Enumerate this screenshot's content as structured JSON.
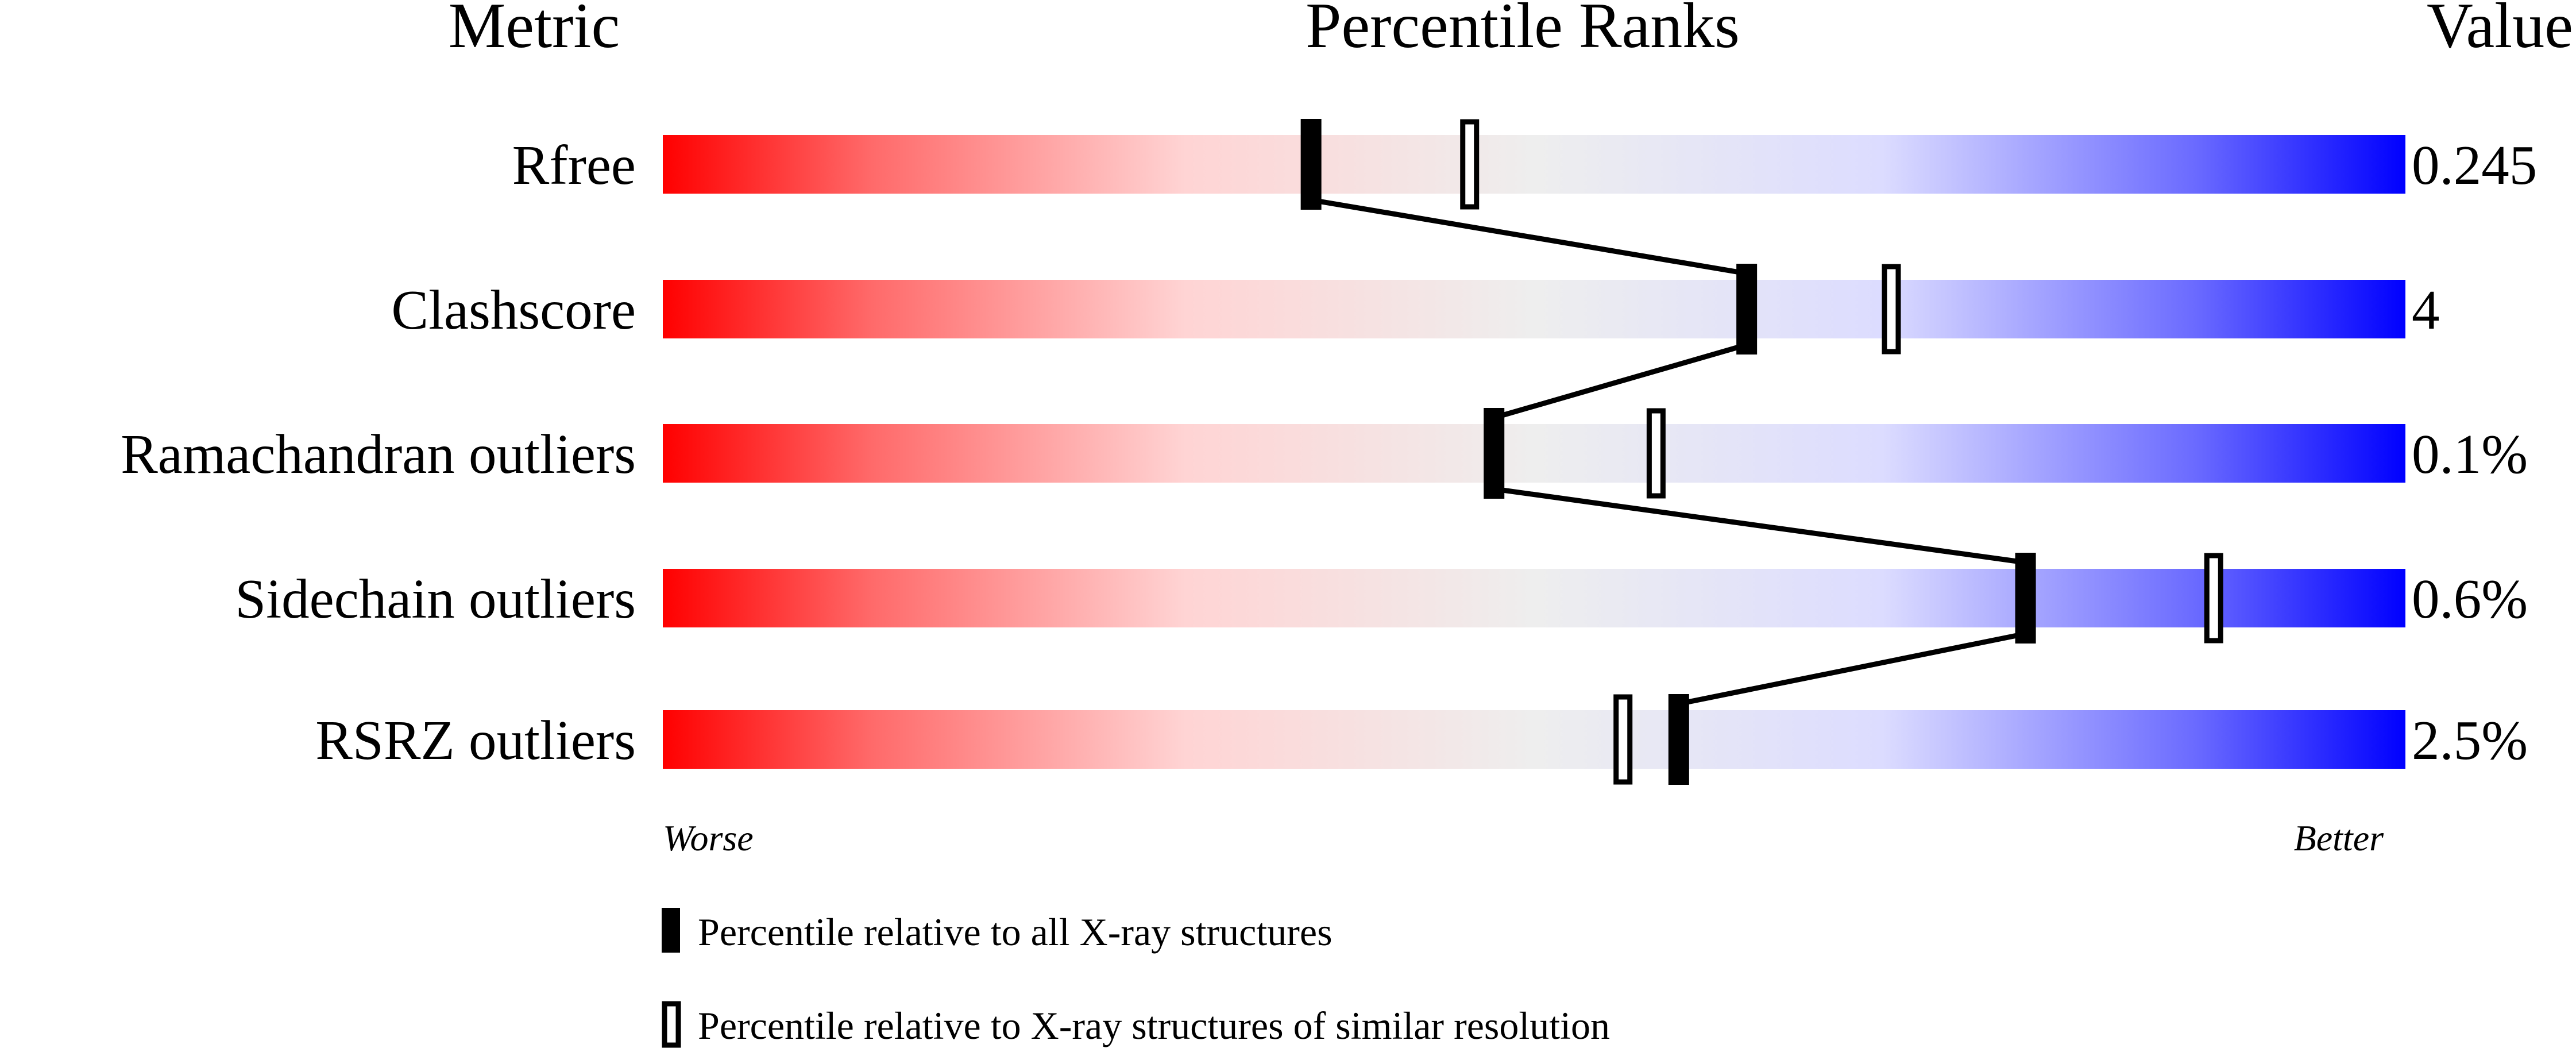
{
  "chart_data": {
    "type": "bar",
    "headers": {
      "metric": "Metric",
      "percentile": "Percentile Ranks",
      "value": "Value"
    },
    "metrics": [
      {
        "name": "Rfree",
        "value": "0.245",
        "percentile_all": 37.2,
        "percentile_similar": 46.3
      },
      {
        "name": "Clashscore",
        "value": "4",
        "percentile_all": 62.2,
        "percentile_similar": 70.5
      },
      {
        "name": "Ramachandran outliers",
        "value": "0.1%",
        "percentile_all": 47.7,
        "percentile_similar": 57.0
      },
      {
        "name": "Sidechain outliers",
        "value": "0.6%",
        "percentile_all": 78.2,
        "percentile_similar": 89.0
      },
      {
        "name": "RSRZ outliers",
        "value": "2.5%",
        "percentile_all": 58.3,
        "percentile_similar": 55.1
      }
    ],
    "xlim": [
      0,
      100
    ],
    "axis_labels": {
      "left": "Worse",
      "right": "Better"
    },
    "legend": {
      "all": "Percentile relative to all X-ray structures",
      "similar": "Percentile relative to X-ray structures of similar resolution"
    },
    "colors": {
      "worse": "#ff0000",
      "middle": "#eeeeee",
      "better": "#0000ff",
      "marker": "#000000"
    }
  }
}
